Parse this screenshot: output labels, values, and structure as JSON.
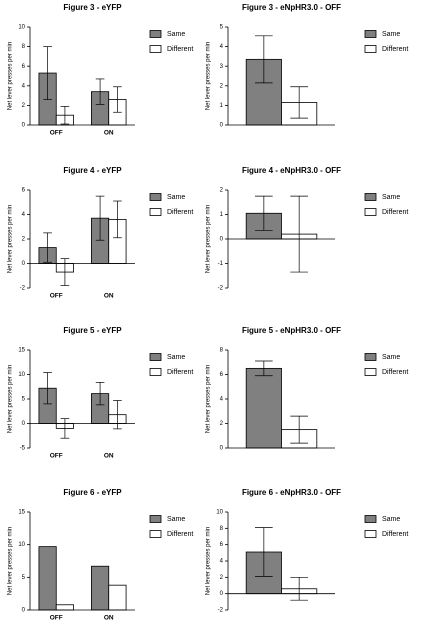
{
  "chart_data": [
    {
      "type": "bar",
      "title": "Figure 3 - eYFP",
      "ylabel": "Net lever presses per min",
      "categories": [
        "OFF",
        "ON"
      ],
      "series": [
        {
          "name": "Same",
          "color": "#808080",
          "values": [
            5.3,
            3.4
          ],
          "errors": [
            2.7,
            1.3
          ]
        },
        {
          "name": "Different",
          "color": "#ffffff",
          "values": [
            1.0,
            2.6
          ],
          "errors": [
            0.9,
            1.3
          ]
        }
      ],
      "ylim": [
        0,
        10
      ],
      "yticks": [
        0,
        2,
        4,
        6,
        8,
        10
      ]
    },
    {
      "type": "bar",
      "title": "Figure 3 - eNpHR3.0 - OFF",
      "ylabel": "Net lever presses per min",
      "categories": [
        null
      ],
      "series": [
        {
          "name": "Same",
          "color": "#808080",
          "values": [
            3.35
          ],
          "errors": [
            1.2
          ]
        },
        {
          "name": "Different",
          "color": "#ffffff",
          "values": [
            1.15
          ],
          "errors": [
            0.8
          ]
        }
      ],
      "ylim": [
        0,
        5
      ],
      "yticks": [
        0,
        1,
        2,
        3,
        4,
        5
      ]
    },
    {
      "type": "bar",
      "title": "Figure 4 - eYFP",
      "ylabel": "Net lever presses per min",
      "categories": [
        "OFF",
        "ON"
      ],
      "series": [
        {
          "name": "Same",
          "color": "#808080",
          "values": [
            1.3,
            3.7
          ],
          "errors": [
            1.2,
            1.8
          ]
        },
        {
          "name": "Different",
          "color": "#ffffff",
          "values": [
            -0.7,
            3.6
          ],
          "errors": [
            1.1,
            1.5
          ]
        }
      ],
      "ylim": [
        -2,
        6
      ],
      "yticks": [
        -2,
        0,
        2,
        4,
        6
      ]
    },
    {
      "type": "bar",
      "title": "Figure 4 - eNpHR3.0 - OFF",
      "ylabel": "Net lever presses per min",
      "categories": [
        null
      ],
      "series": [
        {
          "name": "Same",
          "color": "#808080",
          "values": [
            1.05
          ],
          "errors": [
            0.7
          ]
        },
        {
          "name": "Different",
          "color": "#ffffff",
          "values": [
            0.2
          ],
          "errors": [
            1.55
          ]
        }
      ],
      "ylim": [
        -2,
        2
      ],
      "yticks": [
        -2,
        -1,
        0,
        1,
        2
      ]
    },
    {
      "type": "bar",
      "title": "Figure 5 - eYFP",
      "ylabel": "Net lever presses per min",
      "categories": [
        "OFF",
        "ON"
      ],
      "series": [
        {
          "name": "Same",
          "color": "#808080",
          "values": [
            7.2,
            6.1
          ],
          "errors": [
            3.2,
            2.3
          ]
        },
        {
          "name": "Different",
          "color": "#ffffff",
          "values": [
            -1.0,
            1.8
          ],
          "errors": [
            2.0,
            2.9
          ]
        }
      ],
      "ylim": [
        -5,
        15
      ],
      "yticks": [
        -5,
        0,
        5,
        10,
        15
      ]
    },
    {
      "type": "bar",
      "title": "Figure 5 - eNpHR3.0 - OFF",
      "ylabel": "Net lever presses per min",
      "categories": [
        null
      ],
      "series": [
        {
          "name": "Same",
          "color": "#808080",
          "values": [
            6.5
          ],
          "errors": [
            0.6
          ]
        },
        {
          "name": "Different",
          "color": "#ffffff",
          "values": [
            1.5
          ],
          "errors": [
            1.1
          ]
        }
      ],
      "ylim": [
        0,
        8
      ],
      "yticks": [
        0,
        2,
        4,
        6,
        8
      ]
    },
    {
      "type": "bar",
      "title": "Figure 6 - eYFP",
      "ylabel": "Net lever presses per min",
      "categories": [
        "OFF",
        "ON"
      ],
      "series": [
        {
          "name": "Same",
          "color": "#808080",
          "values": [
            9.7,
            6.7
          ]
        },
        {
          "name": "Different",
          "color": "#ffffff",
          "values": [
            0.8,
            3.8
          ]
        }
      ],
      "ylim": [
        0,
        15
      ],
      "yticks": [
        0,
        5,
        10,
        15
      ]
    },
    {
      "type": "bar",
      "title": "Figure 6 - eNpHR3.0 - OFF",
      "ylabel": "Net lever presses per min",
      "categories": [
        null
      ],
      "series": [
        {
          "name": "Same",
          "color": "#808080",
          "values": [
            5.1
          ],
          "errors": [
            3.0
          ]
        },
        {
          "name": "Different",
          "color": "#ffffff",
          "values": [
            0.6
          ],
          "errors": [
            1.4
          ]
        }
      ],
      "ylim": [
        -2,
        10
      ],
      "yticks": [
        -2,
        0,
        2,
        4,
        6,
        8,
        10
      ]
    }
  ]
}
